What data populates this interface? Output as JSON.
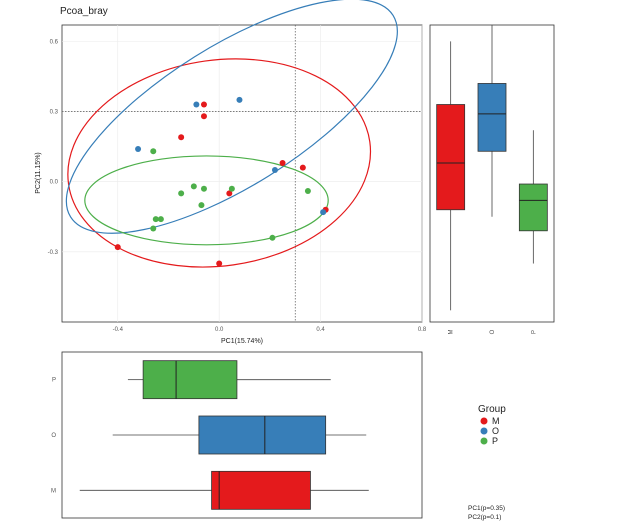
{
  "colors": {
    "M": "#e41a1c",
    "O": "#377eb8",
    "P": "#4daf4a",
    "frame": "#333333",
    "grid": "#ebebeb"
  },
  "chart_data": {
    "type": "scatter",
    "title": "Pcoa_bray",
    "xlabel": "PC1(15.74%)",
    "ylabel": "PC2(11.15%)",
    "xlim": [
      -0.62,
      0.8
    ],
    "ylim": [
      -0.6,
      0.67
    ],
    "xticks": [
      -0.4,
      0.0,
      0.4,
      0.8
    ],
    "xtick_labels": [
      "-0.4",
      "0.0",
      "0.4",
      "0.8"
    ],
    "yticks": [
      0.6,
      0.3,
      0.0,
      -0.3
    ],
    "ytick_labels": [
      "0.6",
      "0.3",
      "0.0",
      "-0.3"
    ],
    "ref_lines": {
      "x": 0.3,
      "y": 0.3
    },
    "groups": [
      "M",
      "O",
      "P"
    ],
    "points": [
      {
        "g": "M",
        "x": -0.06,
        "y": 0.33
      },
      {
        "g": "M",
        "x": -0.06,
        "y": 0.28
      },
      {
        "g": "M",
        "x": -0.15,
        "y": 0.19
      },
      {
        "g": "M",
        "x": 0.25,
        "y": 0.08
      },
      {
        "g": "M",
        "x": 0.33,
        "y": 0.06
      },
      {
        "g": "M",
        "x": 0.04,
        "y": -0.05
      },
      {
        "g": "M",
        "x": -0.4,
        "y": -0.28
      },
      {
        "g": "M",
        "x": 0.0,
        "y": -0.35
      },
      {
        "g": "M",
        "x": 0.42,
        "y": -0.12
      },
      {
        "g": "O",
        "x": -0.09,
        "y": 0.33
      },
      {
        "g": "O",
        "x": 0.08,
        "y": 0.35
      },
      {
        "g": "O",
        "x": -0.32,
        "y": 0.14
      },
      {
        "g": "O",
        "x": 0.22,
        "y": 0.05
      },
      {
        "g": "O",
        "x": 0.41,
        "y": -0.13
      },
      {
        "g": "P",
        "x": -0.26,
        "y": 0.13
      },
      {
        "g": "P",
        "x": -0.1,
        "y": -0.02
      },
      {
        "g": "P",
        "x": -0.06,
        "y": -0.03
      },
      {
        "g": "P",
        "x": -0.15,
        "y": -0.05
      },
      {
        "g": "P",
        "x": 0.05,
        "y": -0.03
      },
      {
        "g": "P",
        "x": -0.07,
        "y": -0.1
      },
      {
        "g": "P",
        "x": 0.35,
        "y": -0.04
      },
      {
        "g": "P",
        "x": -0.25,
        "y": -0.16
      },
      {
        "g": "P",
        "x": -0.23,
        "y": -0.16
      },
      {
        "g": "P",
        "x": -0.26,
        "y": -0.2
      },
      {
        "g": "P",
        "x": 0.21,
        "y": -0.24
      }
    ],
    "ellipses": [
      {
        "g": "M",
        "cx": 0.0,
        "cy": 0.08,
        "rx": 0.6,
        "ry": 0.44,
        "angle": -8
      },
      {
        "g": "O",
        "cx": 0.05,
        "cy": 0.28,
        "rx": 0.75,
        "ry": 0.3,
        "angle": -32
      },
      {
        "g": "P",
        "cx": -0.05,
        "cy": -0.08,
        "rx": 0.48,
        "ry": 0.19,
        "angle": 0
      }
    ],
    "boxplot_pc2": {
      "axis": "PC2",
      "categories": [
        "M",
        "O",
        "P"
      ],
      "boxes": [
        {
          "g": "M",
          "min": -0.55,
          "q1": -0.12,
          "median": 0.08,
          "q3": 0.33,
          "max": 0.6
        },
        {
          "g": "O",
          "min": -0.15,
          "q1": 0.13,
          "median": 0.29,
          "q3": 0.42,
          "max": 0.67
        },
        {
          "g": "P",
          "min": -0.35,
          "q1": -0.21,
          "median": -0.08,
          "q3": -0.01,
          "max": 0.22
        }
      ]
    },
    "boxplot_pc1": {
      "axis": "PC1",
      "categories": [
        "P",
        "O",
        "M"
      ],
      "boxes": [
        {
          "g": "P",
          "min": -0.36,
          "q1": -0.3,
          "median": -0.17,
          "q3": 0.07,
          "max": 0.44
        },
        {
          "g": "O",
          "min": -0.42,
          "q1": -0.08,
          "median": 0.18,
          "q3": 0.42,
          "max": 0.58
        },
        {
          "g": "M",
          "min": -0.55,
          "q1": -0.03,
          "median": 0.0,
          "q3": 0.36,
          "max": 0.59
        }
      ]
    }
  },
  "legend": {
    "title": "Group",
    "items": [
      "M",
      "O",
      "P"
    ]
  },
  "stats": {
    "pc1": "PC1(p=0.35)",
    "pc2": "PC2(p=0.1)"
  }
}
